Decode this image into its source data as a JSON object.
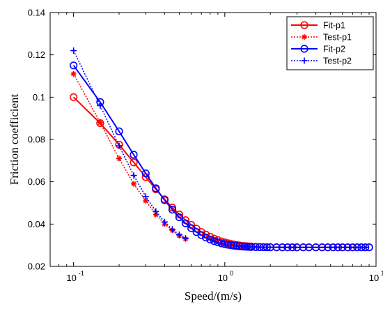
{
  "chart_data": {
    "type": "line",
    "title": "",
    "xlabel": "Speed/(m/s)",
    "ylabel": "Friction coefficient",
    "xscale": "log",
    "xlim": [
      0.07,
      10
    ],
    "ylim": [
      0.02,
      0.14
    ],
    "yticks": [
      "0.02",
      "0.04",
      "0.06",
      "0.08",
      "0.1",
      "0.12",
      "0.14"
    ],
    "xticks": [
      {
        "value": 0.1,
        "base": "10",
        "exp": "-1"
      },
      {
        "value": 1,
        "base": "10",
        "exp": "0"
      },
      {
        "value": 10,
        "base": "10",
        "exp": "1"
      }
    ],
    "grid": false,
    "legend_position": "top-right",
    "x": [
      0.1,
      0.15,
      0.2,
      0.25,
      0.3,
      0.35,
      0.4,
      0.45,
      0.5,
      0.55,
      0.6,
      0.65,
      0.7,
      0.75,
      0.8,
      0.85,
      0.9,
      0.95,
      1.0,
      1.05,
      1.1,
      1.15,
      1.2,
      1.25,
      1.3,
      1.35,
      1.4,
      1.45,
      1.5,
      1.6,
      1.7,
      1.8,
      1.9,
      2.0,
      2.2,
      2.4,
      2.6,
      2.8,
      3.0,
      3.3,
      3.6,
      4.0,
      4.4,
      4.8,
      5.2,
      5.6,
      6.0,
      6.5,
      7.0,
      7.5,
      8.0,
      8.5,
      9.0
    ],
    "series": [
      {
        "name": "Fit-p1",
        "color": "#ff0000",
        "marker": "circle",
        "dash": "solid",
        "sample": "decay",
        "params": {
          "y0": 0.029,
          "A": 0.071,
          "k": 3.8,
          "from": 0.1,
          "to": 9.0
        }
      },
      {
        "name": "Test-p1",
        "color": "#ff0000",
        "marker": "star",
        "dash": "dotted",
        "x": [
          0.1,
          0.15,
          0.2,
          0.25,
          0.3,
          0.35,
          0.4,
          0.45,
          0.5,
          0.55
        ],
        "values": [
          0.111,
          0.088,
          0.071,
          0.059,
          0.051,
          0.0445,
          0.04,
          0.037,
          0.0345,
          0.033
        ]
      },
      {
        "name": "Fit-p2",
        "color": "#0000ff",
        "marker": "circle",
        "dash": "solid",
        "sample": "decay",
        "params": {
          "y0": 0.029,
          "A": 0.086,
          "k": 4.5,
          "from": 0.1,
          "to": 9.0
        }
      },
      {
        "name": "Test-p2",
        "color": "#0000ff",
        "marker": "plus",
        "dash": "dotted",
        "x": [
          0.1,
          0.15,
          0.2,
          0.25,
          0.3,
          0.35,
          0.4,
          0.45,
          0.5,
          0.55
        ],
        "values": [
          0.122,
          0.096,
          0.077,
          0.063,
          0.053,
          0.046,
          0.041,
          0.0375,
          0.035,
          0.0333
        ]
      }
    ]
  }
}
